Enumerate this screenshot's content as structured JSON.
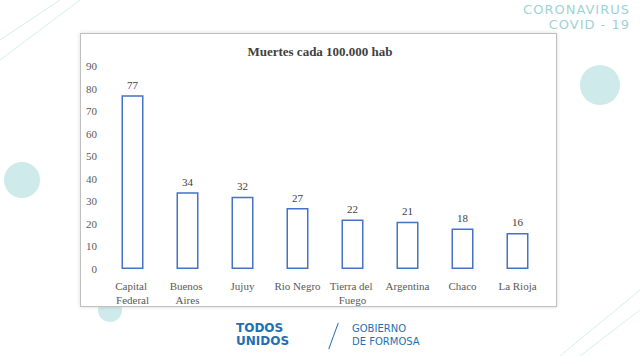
{
  "header": {
    "lines": [
      "CORONAVIRUS",
      "COVID - 19"
    ]
  },
  "footer": {
    "logos": [
      [
        "TODOS",
        "UNIDOS"
      ],
      [
        "GOBIERNO",
        "DE FORMOSA"
      ]
    ]
  },
  "chart_data": {
    "type": "bar",
    "title": "Muertes cada 100.000 hab",
    "categories": [
      "Capital Federal",
      "Buenos Aires",
      "Jujuy",
      "Rio Negro",
      "Tierra del Fuego",
      "Argentina",
      "Chaco",
      "La Rioja"
    ],
    "values": [
      77,
      34,
      32,
      27,
      22,
      21,
      18,
      16
    ],
    "color": "#4472c4",
    "ylim": [
      0,
      90
    ],
    "yticks": [
      0,
      10,
      20,
      30,
      40,
      50,
      60,
      70,
      80,
      90
    ],
    "grid": false,
    "data_labels": true
  }
}
